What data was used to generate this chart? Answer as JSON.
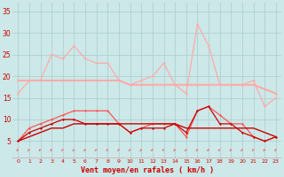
{
  "x": [
    0,
    1,
    2,
    3,
    4,
    5,
    6,
    7,
    8,
    9,
    10,
    11,
    12,
    13,
    14,
    15,
    16,
    17,
    18,
    19,
    20,
    21,
    22,
    23
  ],
  "rafales_light": [
    16,
    19,
    19,
    25,
    24,
    27,
    24,
    23,
    23,
    19,
    18,
    19,
    20,
    23,
    18,
    16,
    32,
    27,
    18,
    18,
    18,
    19,
    13,
    15
  ],
  "moyen_light": [
    19,
    19,
    19,
    19,
    19,
    19,
    19,
    19,
    19,
    19,
    18,
    18,
    18,
    18,
    18,
    18,
    18,
    18,
    18,
    18,
    18,
    18,
    17,
    16
  ],
  "rafales_dark": [
    5,
    8,
    9,
    10,
    11,
    12,
    12,
    12,
    12,
    9,
    7,
    8,
    9,
    9,
    9,
    6,
    12,
    13,
    11,
    9,
    9,
    6,
    5,
    6
  ],
  "moyen_dark1": [
    5,
    7,
    8,
    9,
    10,
    10,
    9,
    9,
    9,
    9,
    7,
    8,
    8,
    8,
    9,
    7,
    12,
    13,
    9,
    9,
    7,
    6,
    5,
    6
  ],
  "moyen_dark2": [
    5,
    6,
    7,
    8,
    8,
    9,
    9,
    9,
    9,
    9,
    9,
    9,
    9,
    9,
    9,
    8,
    8,
    8,
    8,
    8,
    8,
    8,
    7,
    6
  ],
  "bg_color": "#cce8e8",
  "grid_color": "#aacccc",
  "light_pink": "#ffaaaa",
  "mid_red": "#ff5555",
  "dark_red": "#cc0000",
  "xlabel": "Vent moyen/en rafales ( km/h )",
  "ylabel_ticks": [
    5,
    10,
    15,
    20,
    25,
    30,
    35
  ],
  "xlim": [
    -0.5,
    23.5
  ],
  "ylim": [
    1,
    37
  ]
}
